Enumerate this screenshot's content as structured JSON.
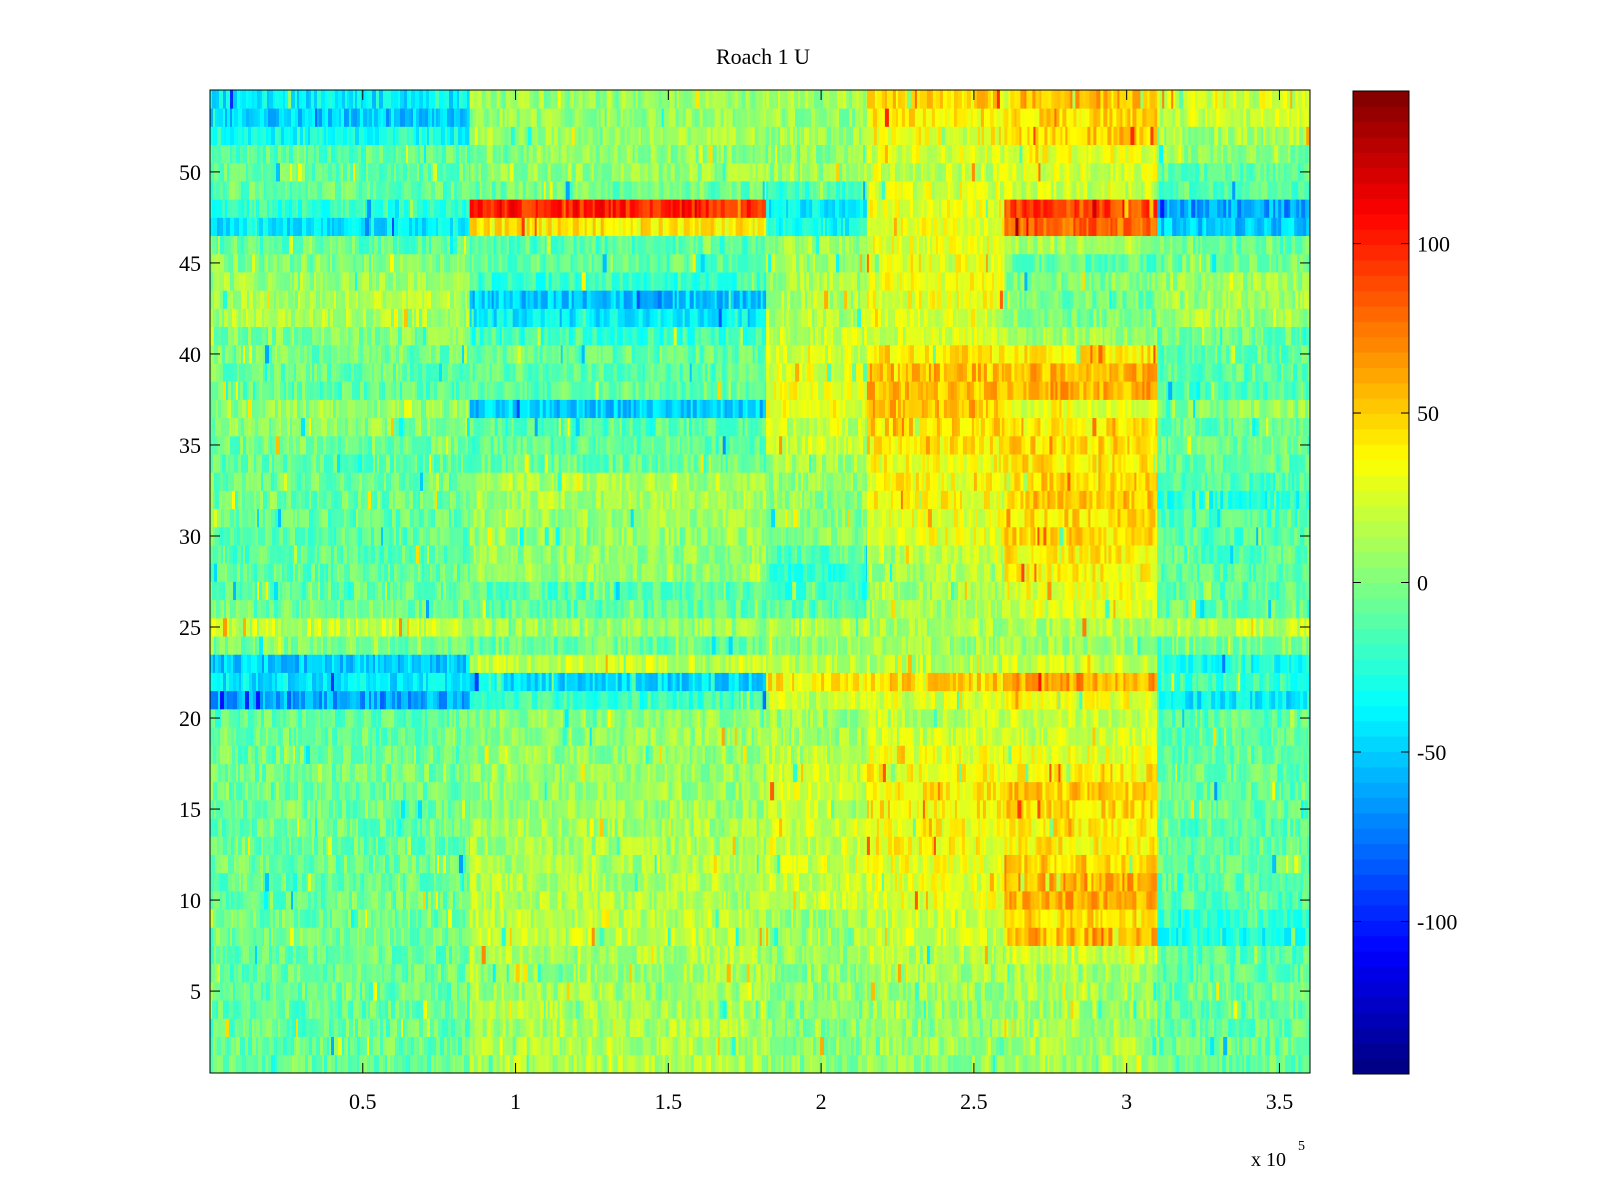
{
  "chart_data": {
    "type": "heatmap",
    "title": "Roach 1 U",
    "xlabel": "",
    "ylabel": "",
    "xlim": [
      0,
      360000
    ],
    "ylim": [
      0.5,
      54.5
    ],
    "x_ticks": [
      50000,
      100000,
      150000,
      200000,
      250000,
      300000,
      350000
    ],
    "x_tick_labels": [
      "0.5",
      "1",
      "1.5",
      "2",
      "2.5",
      "3",
      "3.5"
    ],
    "x_exponent_label": {
      "base": "x 10",
      "power": "5"
    },
    "y_ticks": [
      5,
      10,
      15,
      20,
      25,
      30,
      35,
      40,
      45,
      50
    ],
    "y_tick_labels": [
      "5",
      "10",
      "15",
      "20",
      "25",
      "30",
      "35",
      "40",
      "45",
      "50"
    ],
    "rows": 54,
    "colormap": "jet",
    "colorbar": {
      "clim": [
        -145,
        145
      ],
      "ticks": [
        -100,
        -50,
        0,
        50,
        100
      ],
      "tick_labels": [
        "-100",
        "-50",
        "0",
        "50",
        "100"
      ]
    },
    "x_segments": [
      {
        "x_start": 0,
        "x_end": 85000
      },
      {
        "x_start": 85000,
        "x_end": 182000
      },
      {
        "x_start": 182000,
        "x_end": 215000
      },
      {
        "x_start": 215000,
        "x_end": 260000
      },
      {
        "x_start": 260000,
        "x_end": 310000
      },
      {
        "x_start": 310000,
        "x_end": 360000
      }
    ],
    "row_mean_values": {
      "1": [
        -6,
        14,
        4,
        8,
        12,
        -6
      ],
      "2": [
        -6,
        14,
        4,
        8,
        12,
        -6
      ],
      "3": [
        -8,
        12,
        2,
        6,
        10,
        -8
      ],
      "4": [
        -8,
        12,
        2,
        6,
        10,
        -8
      ],
      "5": [
        -6,
        10,
        4,
        8,
        10,
        -6
      ],
      "6": [
        -6,
        10,
        4,
        10,
        12,
        -8
      ],
      "7": [
        -6,
        12,
        6,
        14,
        20,
        -12
      ],
      "8": [
        -4,
        18,
        8,
        20,
        55,
        -30
      ],
      "9": [
        -4,
        16,
        8,
        20,
        45,
        -20
      ],
      "10": [
        -6,
        14,
        20,
        28,
        60,
        -10
      ],
      "11": [
        -6,
        14,
        20,
        28,
        60,
        -10
      ],
      "12": [
        -6,
        12,
        22,
        30,
        50,
        -8
      ],
      "13": [
        -6,
        10,
        22,
        35,
        40,
        -8
      ],
      "14": [
        -6,
        10,
        22,
        35,
        40,
        -8
      ],
      "15": [
        -4,
        8,
        24,
        40,
        45,
        -8
      ],
      "16": [
        -4,
        8,
        24,
        40,
        50,
        -8
      ],
      "17": [
        -4,
        6,
        20,
        35,
        40,
        -8
      ],
      "18": [
        -6,
        6,
        14,
        30,
        30,
        -10
      ],
      "19": [
        -6,
        6,
        10,
        22,
        22,
        -10
      ],
      "20": [
        -8,
        6,
        8,
        18,
        20,
        -10
      ],
      "21": [
        -60,
        -20,
        20,
        25,
        30,
        -40
      ],
      "22": [
        -40,
        -45,
        40,
        45,
        60,
        -20
      ],
      "23": [
        -50,
        20,
        15,
        15,
        20,
        -30
      ],
      "24": [
        0,
        -5,
        8,
        8,
        10,
        0
      ],
      "25": [
        18,
        10,
        18,
        12,
        14,
        18
      ],
      "26": [
        -6,
        -10,
        -10,
        10,
        25,
        -8
      ],
      "27": [
        -8,
        -12,
        -20,
        12,
        30,
        -10
      ],
      "28": [
        -8,
        8,
        -20,
        12,
        35,
        -10
      ],
      "29": [
        -10,
        6,
        -10,
        20,
        40,
        -10
      ],
      "30": [
        -10,
        8,
        0,
        30,
        45,
        -12
      ],
      "31": [
        -8,
        10,
        0,
        30,
        45,
        -15
      ],
      "32": [
        -6,
        12,
        5,
        35,
        50,
        -25
      ],
      "33": [
        -6,
        14,
        8,
        35,
        50,
        -15
      ],
      "34": [
        -6,
        -8,
        10,
        35,
        45,
        -8
      ],
      "35": [
        -4,
        -10,
        20,
        40,
        45,
        -6
      ],
      "36": [
        2,
        -12,
        20,
        45,
        40,
        -6
      ],
      "37": [
        6,
        -50,
        30,
        55,
        30,
        4
      ],
      "38": [
        -10,
        -8,
        30,
        55,
        60,
        -12
      ],
      "39": [
        -6,
        -10,
        28,
        55,
        55,
        -10
      ],
      "40": [
        -4,
        -8,
        24,
        45,
        40,
        -8
      ],
      "41": [
        0,
        -20,
        20,
        25,
        10,
        -6
      ],
      "42": [
        12,
        -40,
        15,
        25,
        0,
        10
      ],
      "43": [
        14,
        -50,
        12,
        30,
        -5,
        12
      ],
      "44": [
        10,
        -20,
        10,
        30,
        0,
        8
      ],
      "45": [
        0,
        -10,
        10,
        30,
        -10,
        -4
      ],
      "46": [
        -8,
        -12,
        8,
        30,
        10,
        -4
      ],
      "47": [
        -40,
        40,
        -30,
        30,
        80,
        -50
      ],
      "48": [
        -20,
        100,
        -40,
        30,
        90,
        -60
      ],
      "49": [
        -8,
        -5,
        -20,
        25,
        20,
        -10
      ],
      "50": [
        -8,
        6,
        6,
        20,
        25,
        -8
      ],
      "51": [
        -10,
        4,
        2,
        25,
        30,
        4
      ],
      "52": [
        -30,
        10,
        8,
        35,
        50,
        10
      ],
      "53": [
        -50,
        8,
        6,
        40,
        45,
        20
      ],
      "54": [
        -40,
        6,
        10,
        45,
        55,
        25
      ]
    }
  }
}
